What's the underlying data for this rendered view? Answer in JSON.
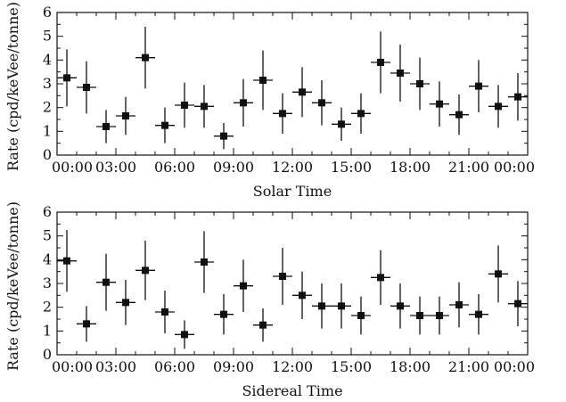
{
  "chart_data": [
    {
      "type": "scatter",
      "xlabel": "Solar Time",
      "ylabel": "Rate (cpd/keVee/tonne)",
      "xlim": [
        0,
        24
      ],
      "ylim": [
        0,
        6
      ],
      "xticks": [
        "00:00",
        "03:00",
        "06:00",
        "09:00",
        "12:00",
        "15:00",
        "18:00",
        "21:00",
        "00:00"
      ],
      "yticks": [
        "0",
        "1",
        "2",
        "3",
        "4",
        "5",
        "6"
      ],
      "x": [
        0.5,
        1.5,
        2.5,
        3.5,
        4.5,
        5.5,
        6.5,
        7.5,
        8.5,
        9.5,
        10.5,
        11.5,
        12.5,
        13.5,
        14.5,
        15.5,
        16.5,
        17.5,
        18.5,
        19.5,
        20.5,
        21.5,
        22.5,
        23.5
      ],
      "y": [
        3.25,
        2.85,
        1.2,
        1.65,
        4.1,
        1.25,
        2.1,
        2.05,
        0.8,
        2.2,
        3.15,
        1.75,
        2.65,
        2.2,
        1.3,
        1.75,
        3.9,
        3.45,
        3.0,
        2.15,
        1.7,
        2.9,
        2.05,
        2.45
      ],
      "yerr_low": [
        1.2,
        1.1,
        0.7,
        0.8,
        1.3,
        0.75,
        0.95,
        0.9,
        0.55,
        1.0,
        1.25,
        0.85,
        1.05,
        0.95,
        0.7,
        0.85,
        1.3,
        1.2,
        1.1,
        0.95,
        0.85,
        1.1,
        0.9,
        1.0
      ],
      "yerr_high": [
        1.2,
        1.1,
        0.7,
        0.8,
        1.3,
        0.75,
        0.95,
        0.9,
        0.55,
        1.0,
        1.25,
        0.85,
        1.05,
        0.95,
        0.7,
        0.85,
        1.3,
        1.2,
        1.1,
        0.95,
        0.85,
        1.1,
        0.9,
        1.0
      ],
      "x_halfwidth": 0.5,
      "grid": false
    },
    {
      "type": "scatter",
      "xlabel": "Sidereal Time",
      "ylabel": "Rate (cpd/keVee/tonne)",
      "xlim": [
        0,
        24
      ],
      "ylim": [
        0,
        6
      ],
      "xticks": [
        "00:00",
        "03:00",
        "06:00",
        "09:00",
        "12:00",
        "15:00",
        "18:00",
        "21:00",
        "00:00"
      ],
      "yticks": [
        "0",
        "1",
        "2",
        "3",
        "4",
        "5",
        "6"
      ],
      "x": [
        0.5,
        1.5,
        2.5,
        3.5,
        4.5,
        5.5,
        6.5,
        7.5,
        8.5,
        9.5,
        10.5,
        11.5,
        12.5,
        13.5,
        14.5,
        15.5,
        16.5,
        17.5,
        18.5,
        19.5,
        20.5,
        21.5,
        22.5,
        23.5
      ],
      "y": [
        3.95,
        1.3,
        3.05,
        2.2,
        3.55,
        1.8,
        0.85,
        3.9,
        1.7,
        2.9,
        1.25,
        3.3,
        2.5,
        2.05,
        2.05,
        1.65,
        3.25,
        2.05,
        1.65,
        1.65,
        2.1,
        1.7,
        3.4,
        2.15
      ],
      "yerr_low": [
        1.3,
        0.75,
        1.2,
        0.95,
        1.25,
        0.9,
        0.6,
        1.3,
        0.85,
        1.1,
        0.7,
        1.2,
        1.0,
        0.95,
        0.95,
        0.8,
        1.15,
        0.95,
        0.8,
        0.8,
        0.95,
        0.85,
        1.2,
        0.95
      ],
      "yerr_high": [
        1.3,
        0.75,
        1.2,
        0.95,
        1.25,
        0.9,
        0.6,
        1.3,
        0.85,
        1.1,
        0.7,
        1.2,
        1.0,
        0.95,
        0.95,
        0.8,
        1.15,
        0.95,
        0.8,
        0.8,
        0.95,
        0.85,
        1.2,
        0.95
      ],
      "x_halfwidth": 0.5,
      "grid": false
    }
  ]
}
